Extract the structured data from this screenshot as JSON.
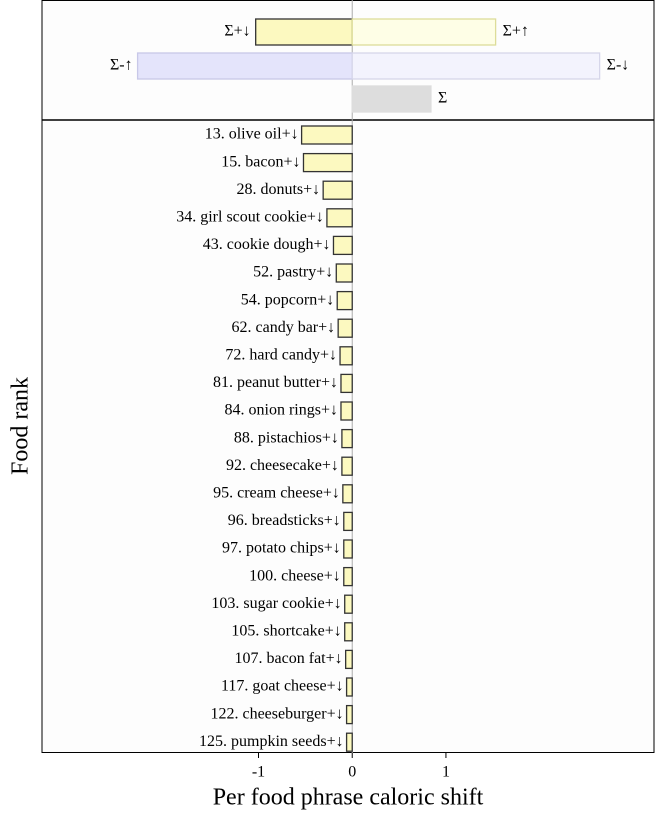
{
  "chart_data": {
    "type": "wordshift",
    "xlabel": "Per food phrase caloric shift",
    "ylabel": "Food rank",
    "xlim": [
      -3.31,
      3.22
    ],
    "xticks": [
      -1,
      0,
      1
    ],
    "summary": {
      "labels": [
        "Σ+↓",
        "Σ+↑",
        "Σ-↑",
        "Σ-↓",
        "Σ"
      ],
      "values": [
        -1.03,
        1.53,
        -2.29,
        2.64,
        0.84
      ],
      "colors": [
        "#fcf9c0",
        "#fefee6",
        "#e4e4fb",
        "#f3f3fd",
        "#dddddd"
      ],
      "borders": [
        "#333333",
        "#dddd99",
        "#c8c8e8",
        "#d6d6ea",
        "#dddddd"
      ]
    },
    "categories": [
      "13. olive oil+↓",
      "15. bacon+↓",
      "28. donuts+↓",
      "34. girl scout cookie+↓",
      "43. cookie dough+↓",
      "52. pastry+↓",
      "54. popcorn+↓",
      "62. candy bar+↓",
      "72. hard candy+↓",
      "81. peanut butter+↓",
      "84. onion rings+↓",
      "88. pistachios+↓",
      "92. cheesecake+↓",
      "95. cream cheese+↓",
      "96. breadsticks+↓",
      "97. potato chips+↓",
      "100. cheese+↓",
      "103. sugar cookie+↓",
      "105. shortcake+↓",
      "107. bacon fat+↓",
      "117. goat cheese+↓",
      "122. cheeseburger+↓",
      "125. pumpkin seeds+↓"
    ],
    "values": [
      -0.54,
      -0.52,
      -0.31,
      -0.27,
      -0.2,
      -0.17,
      -0.16,
      -0.15,
      -0.13,
      -0.12,
      -0.12,
      -0.11,
      -0.11,
      -0.1,
      -0.09,
      -0.09,
      -0.09,
      -0.08,
      -0.08,
      -0.07,
      -0.06,
      -0.06,
      -0.06
    ],
    "color": "#fcf9c0"
  }
}
